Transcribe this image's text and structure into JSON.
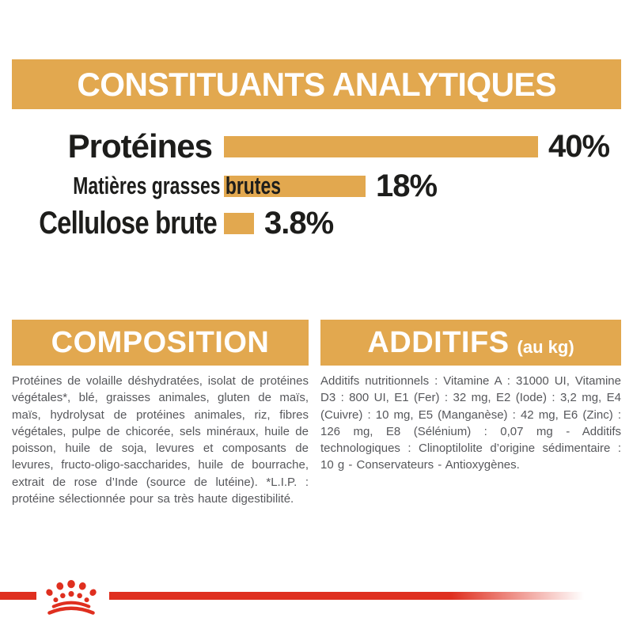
{
  "colors": {
    "gold": "#E2A84F",
    "red": "#DF2F1F",
    "heading_text": "#FFFFFF",
    "chart_text": "#1D1D1B",
    "body_text": "#56575B",
    "background": "#FFFFFF"
  },
  "header": {
    "title": "CONSTITUANTS ANALYTIQUES"
  },
  "chart_data": {
    "type": "bar",
    "orientation": "horizontal",
    "categories": [
      "Protéines",
      "Matières grasses brutes",
      "Cellulose brute"
    ],
    "values": [
      40,
      18,
      3.8
    ],
    "value_labels": [
      "40%",
      "18%",
      "3.8%"
    ],
    "xlim": [
      0,
      40
    ],
    "bar_color": "#E2A84F",
    "grid": false,
    "legend": false,
    "title": "CONSTITUANTS ANALYTIQUES"
  },
  "sections": {
    "composition": {
      "title": "COMPOSITION",
      "body": "Protéines de volaille déshydratées, isolat de protéines végétales*, blé, graisses animales, gluten de maïs, maïs, hydrolysat de protéines animales, riz, fibres végétales, pulpe de chicorée, sels minéraux, huile de poisson, huile de soja, levures et composants de levures, fructo-oligo-saccharides, huile de bourrache, extrait de rose d’Inde (source de lutéine). *L.I.P. : protéine sélectionnée pour sa très haute digestibilité."
    },
    "additifs": {
      "title": "ADDITIFS",
      "unit": "(au kg)",
      "body": "Additifs nutritionnels : Vitamine A : 31000 UI, Vitamine D3 : 800 UI, E1 (Fer) : 32 mg, E2 (Iode) : 3,2 mg, E4 (Cuivre) : 10 mg, E5 (Manganèse) : 42 mg, E6 (Zinc) : 126 mg, E8 (Sélénium) : 0,07 mg - Additifs technologiques : Clinoptilolite d’origine sédimentaire : 10 g - Conservateurs - Antioxygènes."
    }
  },
  "footer": {
    "brand_mark": "royal-canin-crown"
  }
}
